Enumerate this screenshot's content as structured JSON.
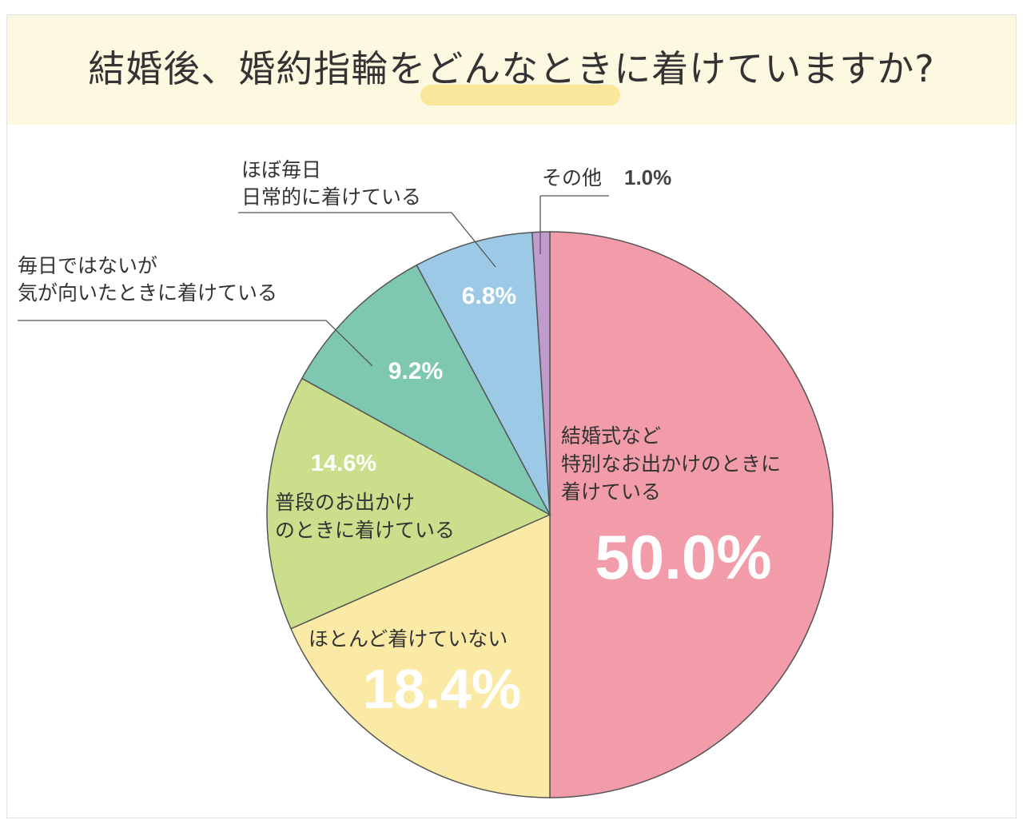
{
  "header": {
    "title": "結婚後、婚約指輪をどんなときに着けていますか?",
    "background": "#fdf9e1",
    "highlight_color": "#fbe79c"
  },
  "chart_data": {
    "type": "pie",
    "title": "結婚後、婚約指輪をどんなときに着けていますか?",
    "unit": "%",
    "slices": [
      {
        "label_lines": [
          "結婚式など",
          "特別なお出かけのときに",
          "着けている"
        ],
        "value": 50.0,
        "display": "50.0%",
        "color": "#f19ca8"
      },
      {
        "label_lines": [
          "ほとんど着けていない"
        ],
        "value": 18.4,
        "display": "18.4%",
        "color": "#fbeaa5"
      },
      {
        "label_lines": [
          "普段のお出かけ",
          "のときに着けている"
        ],
        "value": 14.6,
        "display": "14.6%",
        "color": "#cbde8b"
      },
      {
        "label_lines": [
          "毎日ではないが",
          "気が向いたときに着けている"
        ],
        "value": 9.2,
        "display": "9.2%",
        "color": "#7ec8b1"
      },
      {
        "label_lines": [
          "ほぼ毎日",
          "日常的に着けている"
        ],
        "value": 6.8,
        "display": "6.8%",
        "color": "#9ccae6"
      },
      {
        "label_lines": [
          "その他"
        ],
        "value": 1.0,
        "display": "1.0%",
        "color": "#c09bcb"
      }
    ],
    "start_angle": "12 o'clock",
    "direction": "clockwise",
    "legend": "none (direct labels)"
  }
}
